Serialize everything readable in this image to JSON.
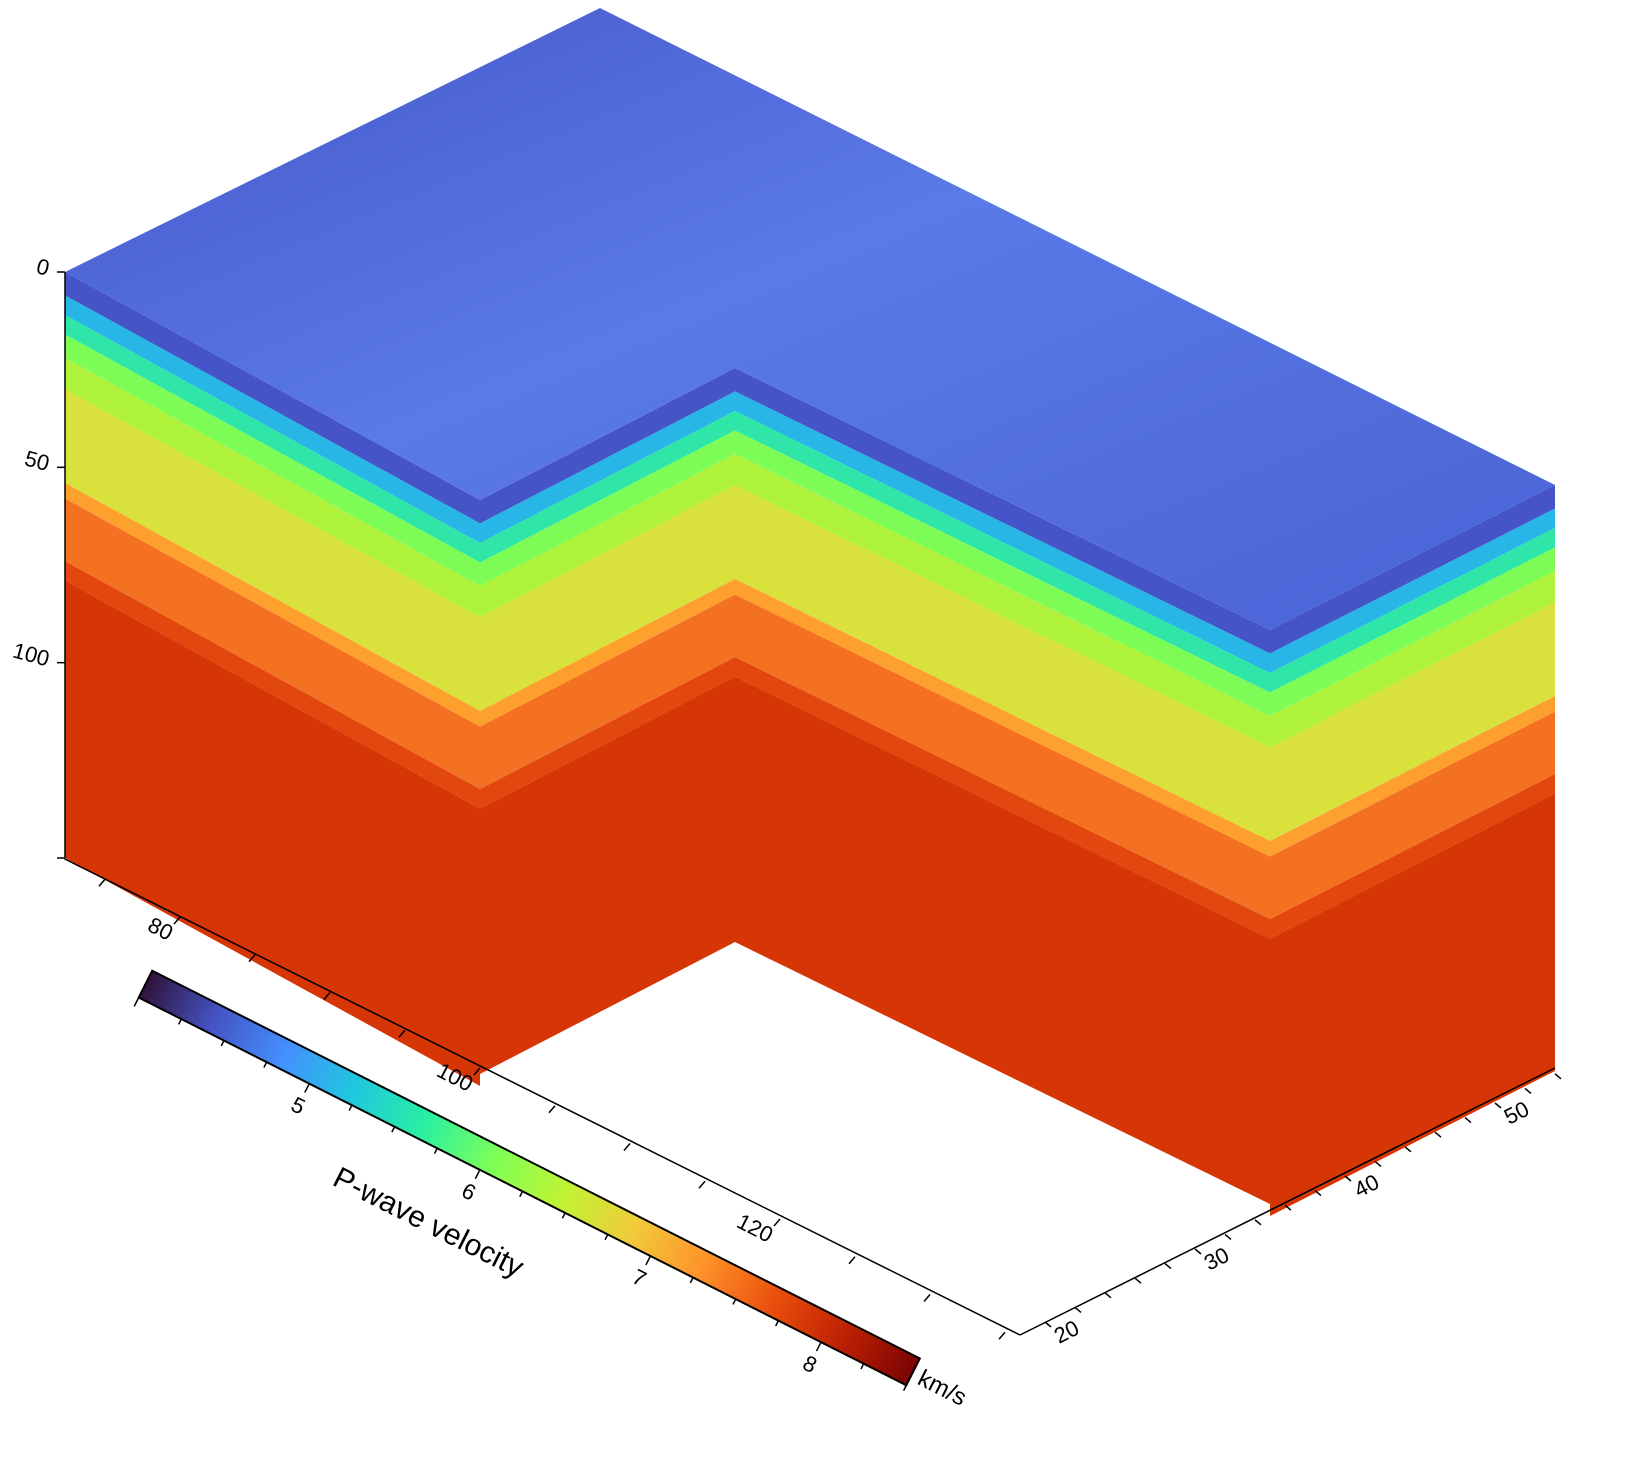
{
  "chart_data": {
    "type": "3d-block-cube",
    "z_axis": {
      "label": "",
      "ticks": [
        0,
        50,
        100,
        150
      ],
      "tick_labels": [
        "0",
        "50",
        "100"
      ],
      "range": [
        0,
        150
      ],
      "direction": "down"
    },
    "x_axis": {
      "label": "",
      "ticks": [
        80,
        100,
        120
      ],
      "tick_labels": [
        "80",
        "100",
        "120"
      ]
    },
    "y_axis": {
      "label": "",
      "ticks": [
        20,
        30,
        40,
        50
      ],
      "tick_labels": [
        "20",
        "30",
        "40",
        "50"
      ]
    },
    "colorbar": {
      "title": "P-wave velocity",
      "unit": "km/s",
      "ticks": [
        5,
        6,
        7,
        8
      ],
      "tick_labels": [
        "5",
        "6",
        "7",
        "8"
      ],
      "range": [
        4,
        8.5
      ],
      "colormap": [
        "#30123b",
        "#4454c4",
        "#4490fe",
        "#1fc8de",
        "#29efa2",
        "#7dff56",
        "#c1f334",
        "#f1ca3a",
        "#fe922a",
        "#ea4f0d",
        "#be2102",
        "#7a0403"
      ]
    },
    "layers": [
      {
        "top": 0,
        "bottom": 6,
        "vp": 4.6,
        "color": "#4554c6"
      },
      {
        "top": 6,
        "bottom": 11,
        "vp": 5.4,
        "color": "#27b6e6"
      },
      {
        "top": 11,
        "bottom": 16,
        "vp": 5.9,
        "color": "#2fe6a8"
      },
      {
        "top": 16,
        "bottom": 22,
        "vp": 6.2,
        "color": "#7dfc56"
      },
      {
        "top": 22,
        "bottom": 30,
        "vp": 6.4,
        "color": "#aff23c"
      },
      {
        "top": 30,
        "bottom": 54,
        "vp": 6.7,
        "color": "#d9e23c"
      },
      {
        "top": 54,
        "bottom": 58,
        "vp": 7.1,
        "color": "#fea02e"
      },
      {
        "top": 58,
        "bottom": 74,
        "vp": 7.5,
        "color": "#f47121"
      },
      {
        "top": 74,
        "bottom": 79,
        "vp": 7.9,
        "color": "#e2470e"
      },
      {
        "top": 79,
        "bottom": 150,
        "vp": 8.0,
        "color": "#d63506"
      }
    ],
    "surface_color": "#4a5fd2"
  }
}
